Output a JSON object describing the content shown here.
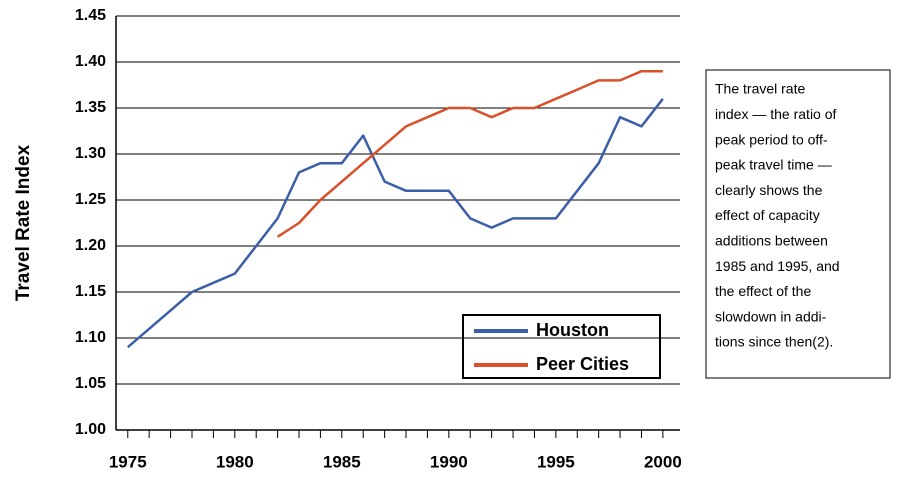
{
  "chart_data": {
    "type": "line",
    "y_label": "Travel Rate Index",
    "x": [
      1975,
      1976,
      1977,
      1978,
      1979,
      1980,
      1981,
      1982,
      1983,
      1984,
      1985,
      1986,
      1987,
      1988,
      1989,
      1990,
      1991,
      1992,
      1993,
      1994,
      1995,
      1996,
      1997,
      1998,
      1999,
      2000
    ],
    "series": [
      {
        "name": "Houston",
        "color": "#3a5ea8",
        "values": [
          1.09,
          1.11,
          1.13,
          1.15,
          1.16,
          1.17,
          1.2,
          1.23,
          1.28,
          1.29,
          1.29,
          1.32,
          1.27,
          1.26,
          1.26,
          1.26,
          1.23,
          1.22,
          1.23,
          1.23,
          1.23,
          1.26,
          1.29,
          1.34,
          1.33,
          1.36
        ]
      },
      {
        "name": "Peer Cities",
        "color": "#d9502a",
        "values": [
          null,
          null,
          null,
          null,
          null,
          null,
          null,
          1.21,
          1.225,
          1.25,
          1.27,
          1.29,
          1.31,
          1.33,
          1.34,
          1.35,
          1.35,
          1.34,
          1.35,
          1.35,
          1.36,
          1.37,
          1.38,
          1.38,
          1.39,
          1.39
        ]
      }
    ],
    "xlim": [
      1974.45,
      2000.8
    ],
    "xticks": [
      1975,
      1980,
      1985,
      1990,
      1995,
      2000
    ],
    "ylim": [
      1.0,
      1.45
    ],
    "yticks": [
      {
        "value": 1.0,
        "label": "1.00"
      },
      1.05,
      {
        "value": 1.1,
        "label": "1.10"
      },
      1.15,
      {
        "value": 1.2,
        "label": "1.20"
      },
      1.25,
      {
        "value": 1.3,
        "label": "1.30"
      },
      1.35,
      {
        "value": 1.4,
        "label": "1.40"
      },
      1.45
    ],
    "grid": true,
    "legend": "lower right",
    "annotation": [
      "The travel rate",
      "index — the ratio of",
      "peak period to off-",
      "peak travel time —",
      "clearly shows the",
      "effect of capacity",
      "additions between",
      "1985 and 1995, and",
      "the effect of the",
      "slowdown in addi-",
      "tions since then(2)."
    ]
  }
}
